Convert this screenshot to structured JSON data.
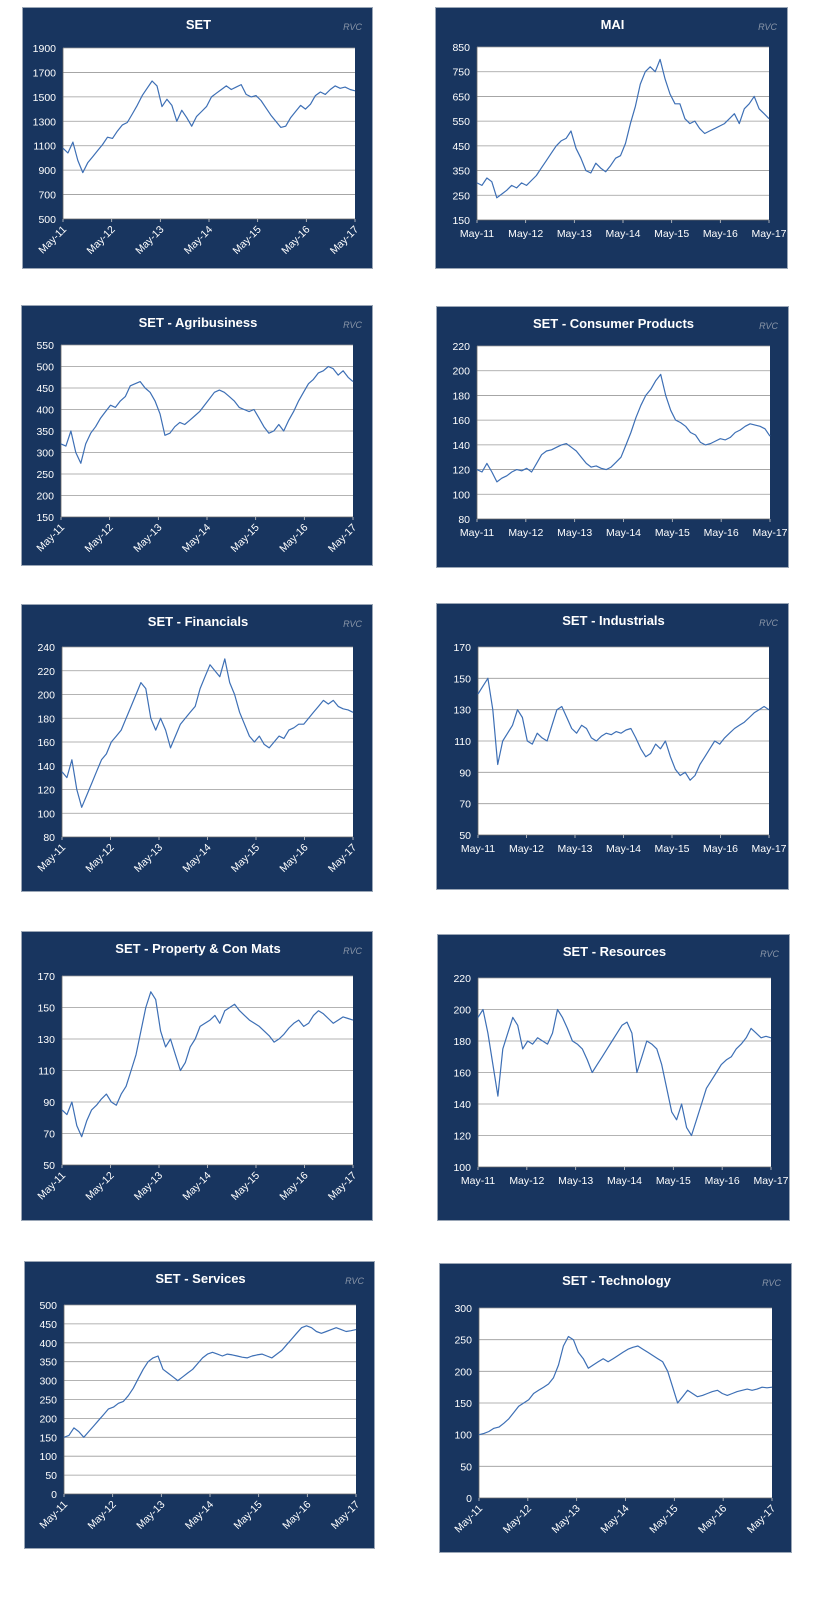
{
  "colors": {
    "panel": "#18355f",
    "plot_bg": "#ffffff",
    "line": "#3d6fb5",
    "grid": "#9a9a9a",
    "text": "#ffffff",
    "watermark": "#8a96a8"
  },
  "watermark": "RVC",
  "chart_data": [
    {
      "type": "line",
      "title": "SET",
      "ylim": [
        500,
        1900
      ],
      "yticks": [
        500,
        700,
        900,
        1100,
        1300,
        1500,
        1700,
        1900
      ],
      "xticks": [
        "May-11",
        "May-12",
        "May-13",
        "May-14",
        "May-15",
        "May-16",
        "May-17"
      ],
      "x_rotated": true,
      "grid": "horizontal",
      "series": [
        {
          "values": [
            1080,
            1040,
            1130,
            980,
            880,
            960,
            1010,
            1060,
            1110,
            1170,
            1160,
            1220,
            1270,
            1290,
            1360,
            1430,
            1510,
            1570,
            1630,
            1590,
            1420,
            1480,
            1430,
            1300,
            1390,
            1330,
            1260,
            1340,
            1380,
            1420,
            1500,
            1530,
            1560,
            1590,
            1560,
            1580,
            1600,
            1520,
            1500,
            1510,
            1470,
            1410,
            1350,
            1300,
            1250,
            1260,
            1330,
            1380,
            1430,
            1400,
            1440,
            1510,
            1540,
            1520,
            1560,
            1590,
            1570,
            1580,
            1560,
            1550
          ]
        }
      ]
    },
    {
      "type": "line",
      "title": "MAI",
      "ylim": [
        150,
        850
      ],
      "yticks": [
        150,
        250,
        350,
        450,
        550,
        650,
        750,
        850
      ],
      "xticks": [
        "May-11",
        "May-12",
        "May-13",
        "May-14",
        "May-15",
        "May-16",
        "May-17"
      ],
      "x_rotated": false,
      "grid": "horizontal",
      "series": [
        {
          "values": [
            300,
            290,
            320,
            305,
            240,
            255,
            270,
            290,
            280,
            300,
            290,
            310,
            330,
            360,
            390,
            420,
            450,
            470,
            480,
            510,
            440,
            400,
            350,
            340,
            380,
            360,
            345,
            370,
            400,
            410,
            460,
            540,
            610,
            700,
            750,
            770,
            750,
            800,
            720,
            660,
            620,
            620,
            560,
            540,
            550,
            520,
            500,
            510,
            520,
            530,
            540,
            560,
            580,
            540,
            600,
            620,
            650,
            600,
            580,
            560
          ]
        }
      ]
    },
    {
      "type": "line",
      "title": "SET - Agribusiness",
      "ylim": [
        150,
        550
      ],
      "yticks": [
        150,
        200,
        250,
        300,
        350,
        400,
        450,
        500,
        550
      ],
      "xticks": [
        "May-11",
        "May-12",
        "May-13",
        "May-14",
        "May-15",
        "May-16",
        "May-17"
      ],
      "x_rotated": true,
      "grid": "horizontal",
      "series": [
        {
          "values": [
            320,
            315,
            350,
            300,
            275,
            320,
            345,
            360,
            380,
            395,
            410,
            405,
            420,
            430,
            455,
            460,
            465,
            450,
            440,
            420,
            390,
            340,
            345,
            360,
            370,
            365,
            375,
            385,
            395,
            410,
            425,
            440,
            445,
            440,
            430,
            420,
            405,
            400,
            395,
            400,
            380,
            360,
            345,
            350,
            365,
            350,
            375,
            395,
            420,
            440,
            460,
            470,
            485,
            490,
            500,
            495,
            480,
            490,
            475,
            465
          ]
        }
      ]
    },
    {
      "type": "line",
      "title": "SET - Consumer Products",
      "ylim": [
        80,
        220
      ],
      "yticks": [
        80,
        100,
        120,
        140,
        160,
        180,
        200,
        220
      ],
      "xticks": [
        "May-11",
        "May-12",
        "May-13",
        "May-14",
        "May-15",
        "May-16",
        "May-17"
      ],
      "x_rotated": false,
      "grid": "horizontal",
      "series": [
        {
          "values": [
            120,
            118,
            125,
            118,
            110,
            113,
            115,
            118,
            120,
            119,
            121,
            118,
            125,
            132,
            135,
            136,
            138,
            140,
            141,
            138,
            135,
            130,
            125,
            122,
            123,
            121,
            120,
            122,
            126,
            130,
            140,
            150,
            162,
            172,
            180,
            185,
            192,
            197,
            180,
            168,
            160,
            158,
            155,
            150,
            148,
            142,
            140,
            141,
            143,
            145,
            144,
            146,
            150,
            152,
            155,
            157,
            156,
            155,
            153,
            147
          ]
        }
      ]
    },
    {
      "type": "line",
      "title": "SET - Financials",
      "ylim": [
        80,
        240
      ],
      "yticks": [
        80,
        100,
        120,
        140,
        160,
        180,
        200,
        220,
        240
      ],
      "xticks": [
        "May-11",
        "May-12",
        "May-13",
        "May-14",
        "May-15",
        "May-16",
        "May-17"
      ],
      "x_rotated": true,
      "grid": "horizontal",
      "series": [
        {
          "values": [
            135,
            130,
            145,
            120,
            105,
            115,
            125,
            135,
            145,
            150,
            160,
            165,
            170,
            180,
            190,
            200,
            210,
            205,
            180,
            170,
            180,
            170,
            155,
            165,
            175,
            180,
            185,
            190,
            205,
            215,
            225,
            220,
            215,
            230,
            210,
            200,
            185,
            175,
            165,
            160,
            165,
            158,
            155,
            160,
            165,
            163,
            170,
            172,
            175,
            175,
            180,
            185,
            190,
            195,
            192,
            195,
            190,
            188,
            187,
            185
          ]
        }
      ]
    },
    {
      "type": "line",
      "title": "SET - Industrials",
      "ylim": [
        50,
        170
      ],
      "yticks": [
        50,
        70,
        90,
        110,
        130,
        150,
        170
      ],
      "xticks": [
        "May-11",
        "May-12",
        "May-13",
        "May-14",
        "May-15",
        "May-16",
        "May-17"
      ],
      "x_rotated": false,
      "grid": "horizontal",
      "series": [
        {
          "values": [
            140,
            145,
            150,
            130,
            95,
            110,
            115,
            120,
            130,
            125,
            110,
            108,
            115,
            112,
            110,
            120,
            130,
            132,
            125,
            118,
            115,
            120,
            118,
            112,
            110,
            113,
            115,
            114,
            116,
            115,
            117,
            118,
            112,
            105,
            100,
            102,
            108,
            105,
            110,
            100,
            92,
            88,
            90,
            85,
            88,
            95,
            100,
            105,
            110,
            108,
            112,
            115,
            118,
            120,
            122,
            125,
            128,
            130,
            132,
            130
          ]
        }
      ]
    },
    {
      "type": "line",
      "title": "SET - Property & Con Mats",
      "ylim": [
        50,
        170
      ],
      "yticks": [
        50,
        70,
        90,
        110,
        130,
        150,
        170
      ],
      "xticks": [
        "May-11",
        "May-12",
        "May-13",
        "May-14",
        "May-15",
        "May-16",
        "May-17"
      ],
      "x_rotated": true,
      "grid": "horizontal",
      "series": [
        {
          "values": [
            85,
            82,
            90,
            75,
            68,
            78,
            85,
            88,
            92,
            95,
            90,
            88,
            95,
            100,
            110,
            120,
            135,
            150,
            160,
            155,
            135,
            125,
            130,
            120,
            110,
            115,
            125,
            130,
            138,
            140,
            142,
            145,
            140,
            148,
            150,
            152,
            148,
            145,
            142,
            140,
            138,
            135,
            132,
            128,
            130,
            133,
            137,
            140,
            142,
            138,
            140,
            145,
            148,
            146,
            143,
            140,
            142,
            144,
            143,
            142
          ]
        }
      ]
    },
    {
      "type": "line",
      "title": "SET - Resources",
      "ylim": [
        100,
        220
      ],
      "yticks": [
        100,
        120,
        140,
        160,
        180,
        200,
        220
      ],
      "xticks": [
        "May-11",
        "May-12",
        "May-13",
        "May-14",
        "May-15",
        "May-16",
        "May-17"
      ],
      "x_rotated": false,
      "grid": "horizontal",
      "series": [
        {
          "values": [
            195,
            200,
            185,
            165,
            145,
            175,
            185,
            195,
            190,
            175,
            180,
            178,
            182,
            180,
            178,
            185,
            200,
            195,
            188,
            180,
            178,
            175,
            168,
            160,
            165,
            170,
            175,
            180,
            185,
            190,
            192,
            185,
            160,
            170,
            180,
            178,
            175,
            165,
            150,
            135,
            130,
            140,
            125,
            120,
            130,
            140,
            150,
            155,
            160,
            165,
            168,
            170,
            175,
            178,
            182,
            188,
            185,
            182,
            183,
            182
          ]
        }
      ]
    },
    {
      "type": "line",
      "title": "SET - Services",
      "ylim": [
        0,
        500
      ],
      "yticks": [
        0,
        50,
        100,
        150,
        200,
        250,
        300,
        350,
        400,
        450,
        500
      ],
      "xticks": [
        "May-11",
        "May-12",
        "May-13",
        "May-14",
        "May-15",
        "May-16",
        "May-17"
      ],
      "x_rotated": true,
      "grid": "horizontal",
      "series": [
        {
          "values": [
            150,
            155,
            175,
            165,
            150,
            165,
            180,
            195,
            210,
            225,
            230,
            240,
            245,
            260,
            280,
            305,
            330,
            350,
            360,
            365,
            330,
            320,
            310,
            300,
            310,
            320,
            330,
            345,
            360,
            370,
            375,
            370,
            365,
            370,
            368,
            365,
            362,
            360,
            365,
            368,
            370,
            365,
            360,
            370,
            380,
            395,
            410,
            425,
            440,
            445,
            440,
            430,
            425,
            430,
            435,
            440,
            435,
            430,
            432,
            435
          ]
        }
      ]
    },
    {
      "type": "line",
      "title": "SET - Technology",
      "ylim": [
        0,
        300
      ],
      "yticks": [
        0,
        50,
        100,
        150,
        200,
        250,
        300
      ],
      "xticks": [
        "May-11",
        "May-12",
        "May-13",
        "May-14",
        "May-15",
        "May-16",
        "May-17"
      ],
      "x_rotated": true,
      "grid": "horizontal",
      "series": [
        {
          "values": [
            100,
            102,
            105,
            110,
            112,
            118,
            125,
            135,
            145,
            150,
            155,
            165,
            170,
            175,
            180,
            190,
            210,
            240,
            255,
            250,
            230,
            220,
            205,
            210,
            215,
            220,
            215,
            220,
            225,
            230,
            235,
            238,
            240,
            235,
            230,
            225,
            220,
            215,
            200,
            175,
            150,
            160,
            170,
            165,
            160,
            162,
            165,
            168,
            170,
            165,
            162,
            165,
            168,
            170,
            172,
            170,
            172,
            175,
            174,
            175
          ]
        }
      ]
    }
  ]
}
